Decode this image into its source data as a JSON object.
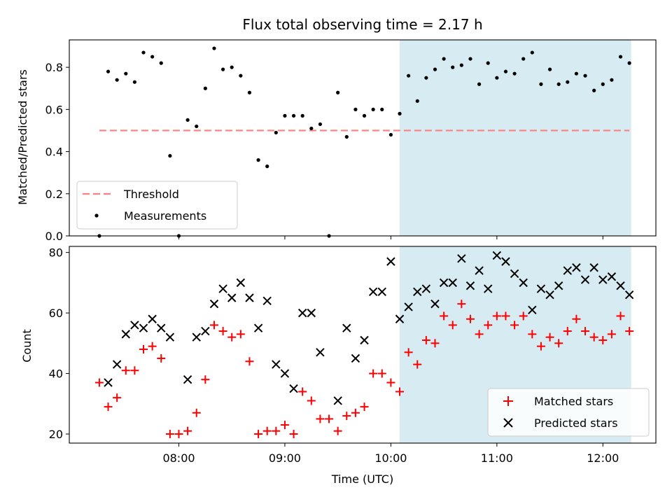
{
  "colors": {
    "shade": "#add8e6",
    "threshold": "#ff7f7f",
    "measurement": "#000000",
    "matched": "#ff0000",
    "predicted": "#000000"
  },
  "chart_data": [
    {
      "type": "scatter",
      "title": "Flux total observing time = 2.17 h",
      "xlabel": "",
      "ylabel": "Matched/Predicted stars",
      "ylim": [
        0,
        0.93
      ],
      "yticks": [
        "0.0",
        "0.2",
        "0.4",
        "0.6",
        "0.8"
      ],
      "ytick_values": [
        0,
        0.2,
        0.4,
        0.6,
        0.8
      ],
      "shaded_x": [
        "10:05",
        "12:16"
      ],
      "threshold": {
        "name": "Threshold",
        "value": 0.5,
        "x": [
          "07:15",
          "12:15"
        ],
        "style": "dashed"
      },
      "legend_position": "lower-left",
      "series": [
        {
          "name": "Measurements",
          "marker": "dot",
          "x": [
            "07:15",
            "07:20",
            "07:25",
            "07:30",
            "07:35",
            "07:40",
            "07:45",
            "07:50",
            "07:55",
            "08:00",
            "08:05",
            "08:10",
            "08:15",
            "08:20",
            "08:25",
            "08:30",
            "08:35",
            "08:40",
            "08:45",
            "08:50",
            "08:55",
            "09:00",
            "09:05",
            "09:10",
            "09:15",
            "09:20",
            "09:25",
            "09:30",
            "09:35",
            "09:40",
            "09:45",
            "09:50",
            "09:55",
            "10:00",
            "10:05",
            "10:10",
            "10:15",
            "10:20",
            "10:25",
            "10:30",
            "10:35",
            "10:40",
            "10:45",
            "10:50",
            "10:55",
            "11:00",
            "11:05",
            "11:10",
            "11:15",
            "11:20",
            "11:25",
            "11:30",
            "11:35",
            "11:40",
            "11:45",
            "11:50",
            "11:55",
            "12:00",
            "12:05",
            "12:10",
            "12:15"
          ],
          "values": [
            0.0,
            0.78,
            0.74,
            0.77,
            0.73,
            0.87,
            0.85,
            0.82,
            0.38,
            0.0,
            0.55,
            0.52,
            0.7,
            0.89,
            0.79,
            0.8,
            0.76,
            0.68,
            0.36,
            0.33,
            0.49,
            0.57,
            0.57,
            0.57,
            0.51,
            0.53,
            0.0,
            0.68,
            0.47,
            0.6,
            0.57,
            0.6,
            0.6,
            0.48,
            0.58,
            0.76,
            0.64,
            0.75,
            0.79,
            0.84,
            0.8,
            0.81,
            0.84,
            0.72,
            0.82,
            0.75,
            0.78,
            0.77,
            0.84,
            0.87,
            0.72,
            0.79,
            0.72,
            0.73,
            0.77,
            0.76,
            0.69,
            0.72,
            0.74,
            0.85,
            0.82
          ]
        }
      ]
    },
    {
      "type": "scatter",
      "title": "",
      "xlabel": "Time (UTC)",
      "ylabel": "Count",
      "ylim": [
        17,
        82
      ],
      "yticks": [
        "20",
        "40",
        "60",
        "80"
      ],
      "ytick_values": [
        20,
        40,
        60,
        80
      ],
      "xlim": [
        "06:58",
        "12:30"
      ],
      "xticks": [
        "08:00",
        "09:00",
        "10:00",
        "11:00",
        "12:00"
      ],
      "shaded_x": [
        "10:05",
        "12:16"
      ],
      "legend_position": "lower-right",
      "series": [
        {
          "name": "Matched stars",
          "marker": "plus",
          "x": [
            "07:15",
            "07:20",
            "07:25",
            "07:30",
            "07:35",
            "07:40",
            "07:45",
            "07:50",
            "07:55",
            "08:00",
            "08:05",
            "08:10",
            "08:15",
            "08:20",
            "08:25",
            "08:30",
            "08:35",
            "08:40",
            "08:45",
            "08:50",
            "08:55",
            "09:00",
            "09:05",
            "09:10",
            "09:15",
            "09:20",
            "09:25",
            "09:30",
            "09:35",
            "09:40",
            "09:45",
            "09:50",
            "09:55",
            "10:00",
            "10:05",
            "10:10",
            "10:15",
            "10:20",
            "10:25",
            "10:30",
            "10:35",
            "10:40",
            "10:45",
            "10:50",
            "10:55",
            "11:00",
            "11:05",
            "11:10",
            "11:15",
            "11:20",
            "11:25",
            "11:30",
            "11:35",
            "11:40",
            "11:45",
            "11:50",
            "11:55",
            "12:00",
            "12:05",
            "12:10",
            "12:15"
          ],
          "values": [
            37,
            29,
            32,
            41,
            41,
            48,
            49,
            45,
            20,
            20,
            21,
            27,
            38,
            56,
            54,
            52,
            53,
            44,
            20,
            21,
            21,
            23,
            20,
            34,
            31,
            25,
            25,
            21,
            26,
            27,
            29,
            40,
            40,
            37,
            34,
            47,
            43,
            51,
            50,
            59,
            56,
            63,
            58,
            53,
            56,
            59,
            59,
            56,
            59,
            53,
            49,
            52,
            50,
            54,
            58,
            54,
            52,
            51,
            53,
            59,
            54
          ]
        },
        {
          "name": "Predicted stars",
          "marker": "x",
          "x": [
            "07:20",
            "07:25",
            "07:30",
            "07:35",
            "07:40",
            "07:45",
            "07:50",
            "07:55",
            "08:05",
            "08:10",
            "08:15",
            "08:20",
            "08:25",
            "08:30",
            "08:35",
            "08:40",
            "08:45",
            "08:50",
            "08:55",
            "09:00",
            "09:05",
            "09:10",
            "09:15",
            "09:20",
            "09:30",
            "09:35",
            "09:40",
            "09:45",
            "09:50",
            "09:55",
            "10:00",
            "10:05",
            "10:10",
            "10:15",
            "10:20",
            "10:25",
            "10:30",
            "10:35",
            "10:40",
            "10:45",
            "10:50",
            "10:55",
            "11:00",
            "11:05",
            "11:10",
            "11:15",
            "11:20",
            "11:25",
            "11:30",
            "11:35",
            "11:40",
            "11:45",
            "11:50",
            "11:55",
            "12:00",
            "12:05",
            "12:10",
            "12:15"
          ],
          "values": [
            37,
            43,
            53,
            56,
            55,
            58,
            55,
            52,
            38,
            52,
            54,
            63,
            68,
            65,
            70,
            65,
            55,
            64,
            43,
            40,
            35,
            60,
            60,
            47,
            31,
            55,
            45,
            51,
            67,
            67,
            77,
            58,
            62,
            67,
            68,
            63,
            70,
            70,
            78,
            69,
            74,
            68,
            79,
            77,
            73,
            70,
            61,
            68,
            66,
            69,
            74,
            75,
            71,
            75,
            71,
            72,
            69,
            66
          ]
        }
      ]
    }
  ]
}
